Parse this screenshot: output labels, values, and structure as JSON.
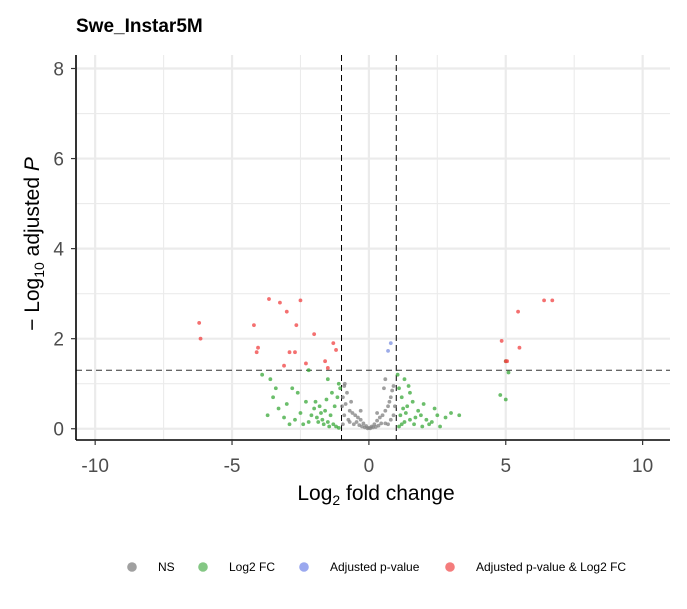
{
  "chart_data": {
    "type": "scatter",
    "title": "Swe_Instar5M",
    "xlabel": {
      "base": "Log",
      "sub": "2",
      "rest": " fold change"
    },
    "ylabel": {
      "prefix": "− Log",
      "sub": "10",
      "rest": " adjusted ",
      "italic": "P"
    },
    "xlim": [
      -10.7,
      11.0
    ],
    "ylim": [
      -0.25,
      8.3
    ],
    "x_ticks": [
      -10,
      -5,
      0,
      5,
      10
    ],
    "x_tick_labels": [
      "-10",
      "-5",
      "0",
      "5",
      "10"
    ],
    "y_ticks": [
      0,
      2,
      4,
      6,
      8
    ],
    "y_tick_labels": [
      "0",
      "2",
      "4",
      "6",
      "8"
    ],
    "grid": true,
    "cutoffs": {
      "fold_change": [
        -1,
        1
      ],
      "p_value": 1.3
    },
    "legend_position": "bottom",
    "colors": {
      "NS": "#808080",
      "Log2 FC": "#3aa83a",
      "Adjusted p-value": "#7b8fe0",
      "Adjusted p-value & Log2 FC": "#f04040"
    },
    "legend": [
      {
        "label": "NS",
        "color": "#a0a0a0"
      },
      {
        "label": "Log2 FC",
        "color": "#84c784"
      },
      {
        "label": "Adjusted p-value",
        "color": "#9aa8ef"
      },
      {
        "label": "Adjusted p-value & Log2 FC",
        "color": "#f47c7c"
      }
    ],
    "series": [
      {
        "name": "NS",
        "points": [
          [
            -0.9,
            0.95
          ],
          [
            -0.95,
            0.7
          ],
          [
            -0.85,
            0.55
          ],
          [
            -0.7,
            0.4
          ],
          [
            -0.6,
            0.35
          ],
          [
            -0.5,
            0.3
          ],
          [
            -0.4,
            0.25
          ],
          [
            -0.3,
            0.2
          ],
          [
            -0.2,
            0.12
          ],
          [
            -0.1,
            0.06
          ],
          [
            0,
            0.02
          ],
          [
            0.1,
            0.05
          ],
          [
            0.2,
            0.1
          ],
          [
            0.3,
            0.18
          ],
          [
            0.4,
            0.25
          ],
          [
            0.5,
            0.3
          ],
          [
            0.6,
            0.4
          ],
          [
            0.7,
            0.5
          ],
          [
            0.8,
            0.7
          ],
          [
            0.9,
            0.95
          ],
          [
            0.6,
            1.1
          ],
          [
            0.55,
            0.9
          ],
          [
            -0.8,
            0.8
          ],
          [
            -0.65,
            0.6
          ],
          [
            0.75,
            0.6
          ],
          [
            -0.45,
            0.15
          ],
          [
            0.45,
            0.12
          ],
          [
            -0.25,
            0.05
          ],
          [
            0.25,
            0.04
          ],
          [
            -0.9,
            0.3
          ],
          [
            0.9,
            0.3
          ],
          [
            -0.75,
            0.2
          ],
          [
            0.8,
            0.2
          ],
          [
            -0.55,
            0.1
          ],
          [
            0.6,
            0.12
          ],
          [
            -0.35,
            0.08
          ],
          [
            0.35,
            0.07
          ],
          [
            -0.15,
            0.03
          ],
          [
            0.15,
            0.03
          ],
          [
            0.05,
            0.01
          ],
          [
            -0.05,
            0.01
          ],
          [
            0.95,
            0.5
          ],
          [
            -0.98,
            0.5
          ],
          [
            0.85,
            0.85
          ],
          [
            -0.88,
            1.0
          ],
          [
            -0.3,
            0.4
          ],
          [
            0.3,
            0.35
          ],
          [
            -0.7,
            0.15
          ],
          [
            0.7,
            0.1
          ],
          [
            -0.95,
            0.1
          ]
        ]
      },
      {
        "name": "Log2 FC",
        "points": [
          [
            -3.9,
            1.2
          ],
          [
            -3.6,
            1.1
          ],
          [
            -3.5,
            0.7
          ],
          [
            -3.3,
            0.45
          ],
          [
            -3.0,
            0.55
          ],
          [
            -2.8,
            0.9
          ],
          [
            -2.6,
            0.8
          ],
          [
            -2.5,
            0.35
          ],
          [
            -2.3,
            0.6
          ],
          [
            -2.1,
            0.3
          ],
          [
            -1.9,
            0.25
          ],
          [
            -1.7,
            0.2
          ],
          [
            -1.5,
            0.15
          ],
          [
            -1.3,
            0.1
          ],
          [
            -1.2,
            0.05
          ],
          [
            -1.1,
            0.02
          ],
          [
            -1.4,
            0.3
          ],
          [
            -1.6,
            0.4
          ],
          [
            -1.8,
            0.5
          ],
          [
            -2.0,
            0.45
          ],
          [
            -2.2,
            0.15
          ],
          [
            -2.4,
            0.1
          ],
          [
            -2.7,
            0.2
          ],
          [
            -3.1,
            0.25
          ],
          [
            -1.15,
            0.7
          ],
          [
            -1.25,
            0.5
          ],
          [
            -1.05,
            0.9
          ],
          [
            -1.35,
            0.8
          ],
          [
            -1.55,
            0.65
          ],
          [
            -1.75,
            0.35
          ],
          [
            -1.85,
            0.15
          ],
          [
            -1.45,
            0.05
          ],
          [
            -2.9,
            0.1
          ],
          [
            -3.7,
            0.3
          ],
          [
            -1.65,
            0.1
          ],
          [
            -1.95,
            0.6
          ],
          [
            -1.1,
            1.0
          ],
          [
            -1.5,
            1.1
          ],
          [
            -2.2,
            1.3
          ],
          [
            -3.4,
            0.9
          ],
          [
            1.1,
            0.05
          ],
          [
            1.2,
            0.1
          ],
          [
            1.3,
            0.15
          ],
          [
            1.5,
            0.2
          ],
          [
            1.7,
            0.25
          ],
          [
            1.9,
            0.3
          ],
          [
            2.1,
            0.2
          ],
          [
            2.3,
            0.15
          ],
          [
            2.5,
            0.3
          ],
          [
            2.8,
            0.25
          ],
          [
            3.0,
            0.35
          ],
          [
            3.3,
            0.3
          ],
          [
            1.4,
            0.5
          ],
          [
            1.6,
            0.6
          ],
          [
            1.8,
            0.4
          ],
          [
            1.2,
            0.7
          ],
          [
            1.1,
            0.9
          ],
          [
            1.3,
            1.1
          ],
          [
            1.5,
            0.8
          ],
          [
            2.0,
            0.55
          ],
          [
            2.2,
            0.1
          ],
          [
            2.6,
            0.05
          ],
          [
            1.35,
            0.35
          ],
          [
            1.65,
            0.1
          ],
          [
            1.95,
            0.05
          ],
          [
            1.05,
            1.2
          ],
          [
            1.15,
            0.3
          ],
          [
            2.4,
            0.45
          ],
          [
            1.45,
            0.95
          ],
          [
            1.25,
            0.45
          ],
          [
            4.8,
            0.75
          ],
          [
            5.0,
            0.65
          ],
          [
            5.1,
            1.25
          ],
          [
            5.0,
            1.5
          ]
        ]
      },
      {
        "name": "Adjusted p-value",
        "points": [
          [
            0.8,
            1.9
          ],
          [
            0.7,
            1.73
          ]
        ]
      },
      {
        "name": "Adjusted p-value & Log2 FC",
        "points": [
          [
            -6.2,
            2.35
          ],
          [
            -6.15,
            2.0
          ],
          [
            -4.2,
            2.3
          ],
          [
            -4.05,
            1.8
          ],
          [
            -4.1,
            1.7
          ],
          [
            -3.65,
            2.88
          ],
          [
            -3.25,
            2.8
          ],
          [
            -3.0,
            2.6
          ],
          [
            -2.5,
            2.85
          ],
          [
            -2.65,
            2.3
          ],
          [
            -2.0,
            2.1
          ],
          [
            -1.3,
            1.9
          ],
          [
            -1.2,
            1.75
          ],
          [
            -2.7,
            1.7
          ],
          [
            -2.9,
            1.7
          ],
          [
            -3.1,
            1.4
          ],
          [
            -1.6,
            1.5
          ],
          [
            -2.3,
            1.45
          ],
          [
            -1.5,
            1.35
          ],
          [
            5.45,
            2.6
          ],
          [
            6.4,
            2.85
          ],
          [
            6.7,
            2.85
          ],
          [
            4.85,
            1.95
          ],
          [
            5.5,
            1.8
          ],
          [
            5.0,
            1.5
          ],
          [
            5.05,
            1.5
          ]
        ]
      }
    ]
  }
}
